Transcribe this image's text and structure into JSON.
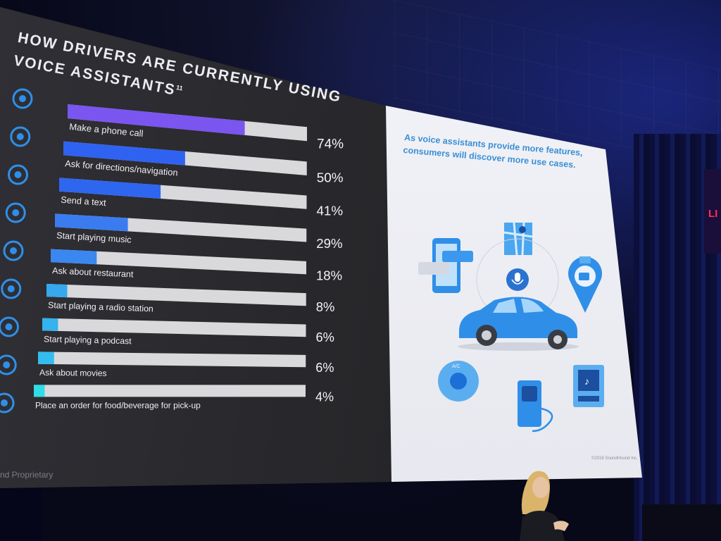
{
  "slide": {
    "title_line1": "HOW DRIVERS ARE CURRENTLY USING",
    "title_line2": "VOICE ASSISTANTS",
    "title_footnote": "11",
    "footer_text": "nd Proprietary",
    "right_panel": {
      "tagline": "As voice assistants provide more features, consumers will discover more use cases.",
      "ac_label": "A/C",
      "copyright": "©2019 SoundHound Inc."
    }
  },
  "colors": {
    "bar_track": "#d9d9dc",
    "label_text": "#eeeef3",
    "value_text": "#f4f4f8",
    "accent_blue": "#2f8fe8"
  },
  "icons": [
    "phone-icon",
    "info-pin-icon",
    "chat-bubble-icon",
    "music-note-icon",
    "fork-knife-icon",
    "radio-icon",
    "podcast-icon",
    "movie-camera-icon",
    "pin-icon"
  ],
  "chart_data": {
    "type": "bar",
    "orientation": "horizontal",
    "title": "HOW DRIVERS ARE CURRENTLY USING VOICE ASSISTANTS",
    "categories": [
      "Make a phone call",
      "Ask for directions/navigation",
      "Send a text",
      "Start playing music",
      "Ask about restaurant",
      "Start playing a radio station",
      "Start playing a podcast",
      "Ask about movies",
      "Place an order for food/beverage for pick-up"
    ],
    "values": [
      74,
      50,
      41,
      29,
      18,
      8,
      6,
      6,
      4
    ],
    "value_labels": [
      "74%",
      "50%",
      "41%",
      "29%",
      "18%",
      "8%",
      "6%",
      "6%",
      "4%"
    ],
    "bar_colors": [
      "#7a55f0",
      "#2f62f0",
      "#2f66f0",
      "#3a7cf0",
      "#3a88ef",
      "#35a8ee",
      "#34b3ee",
      "#33bdee",
      "#2fdde6"
    ],
    "xlim": [
      0,
      100
    ],
    "grid": false,
    "legend": "none"
  }
}
